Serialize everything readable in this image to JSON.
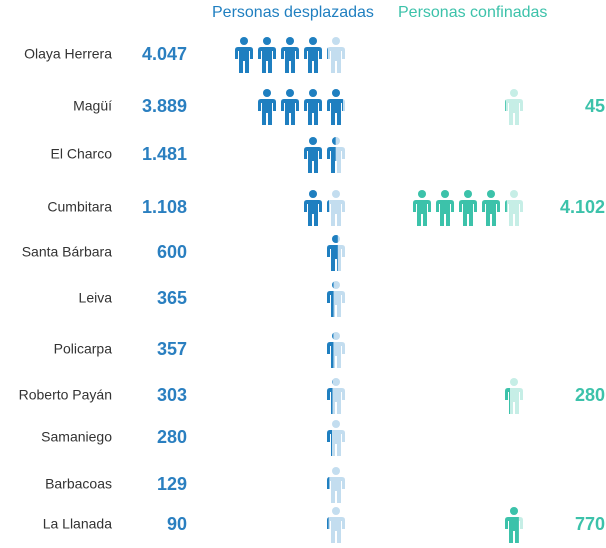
{
  "chart_data": {
    "type": "pictogram",
    "categories": [
      "Olaya Herrera",
      "Magüí",
      "El Charco",
      "Cumbitara",
      "Santa Bárbara",
      "Leiva",
      "Policarpa",
      "Roberto Payán",
      "Samaniego",
      "Barbacoas",
      "La Llanada"
    ],
    "series": [
      {
        "name": "Personas desplazadas",
        "color": "#1f7fc0",
        "light_color": "#c3ddef",
        "values": [
          4047,
          3889,
          1481,
          1108,
          600,
          365,
          357,
          303,
          280,
          129,
          90
        ],
        "value_labels": [
          "4.047",
          "3.889",
          "1.481",
          "1.108",
          "600",
          "365",
          "357",
          "303",
          "280",
          "129",
          "90"
        ]
      },
      {
        "name": "Personas confinadas",
        "color": "#3cc2aa",
        "light_color": "#c6eee6",
        "values": [
          null,
          45,
          null,
          4102,
          null,
          null,
          null,
          280,
          null,
          null,
          770
        ],
        "value_labels": [
          null,
          "45",
          null,
          "4.102",
          null,
          null,
          null,
          "280",
          null,
          null,
          "770"
        ]
      }
    ]
  }
}
